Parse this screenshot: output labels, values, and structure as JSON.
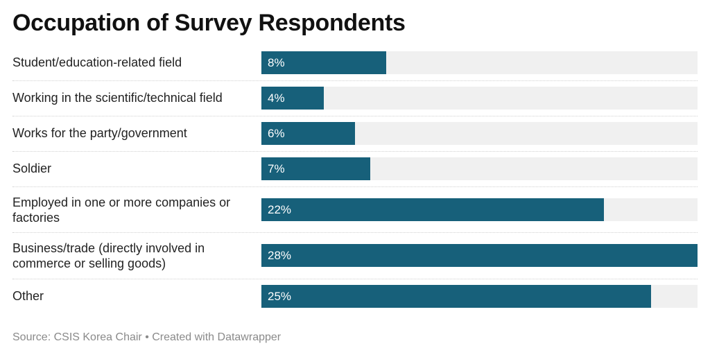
{
  "chart_data": {
    "type": "bar",
    "orientation": "horizontal",
    "title": "Occupation of Survey Respondents",
    "categories": [
      "Student/education-related field",
      "Working in the scientific/technical field",
      "Works for the party/government",
      "Soldier",
      "Employed in one or more companies or factories",
      "Business/trade (directly involved in commerce or selling goods)",
      "Other"
    ],
    "values": [
      8,
      4,
      6,
      7,
      22,
      28,
      25
    ],
    "value_labels": [
      "8%",
      "4%",
      "6%",
      "7%",
      "22%",
      "28%",
      "25%"
    ],
    "unit": "%",
    "xlim": [
      0,
      28
    ],
    "grid": false,
    "legend": "none",
    "colors": {
      "bar": "#17607a",
      "track": "#f0f0f0"
    }
  },
  "footer": {
    "source": "Source: CSIS Korea Chair • Created with Datawrapper"
  }
}
